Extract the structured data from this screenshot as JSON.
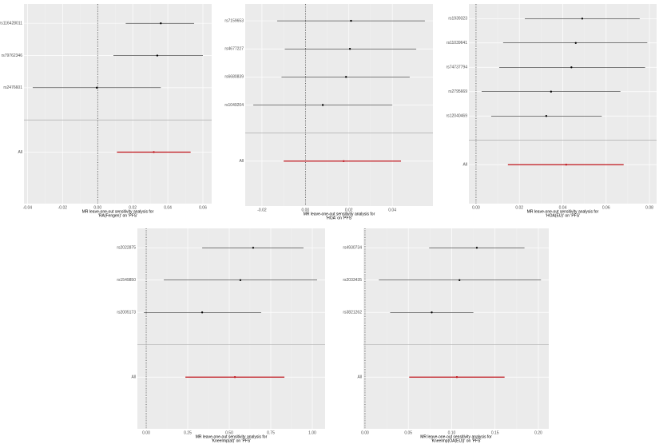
{
  "chart_data": [
    {
      "type": "forest",
      "color": "#000000",
      "summary_color": "#c0141b",
      "categories": [
        "rs116428011",
        "rs79762346",
        "rs2476601",
        "All"
      ],
      "values": [
        0.036,
        0.034,
        -0.0005,
        0.032
      ],
      "lower": [
        0.016,
        0.009,
        -0.037,
        0.011
      ],
      "upper": [
        0.055,
        0.06,
        0.036,
        0.053
      ],
      "xlim": [
        -0.042,
        0.065
      ],
      "xticks": [
        -0.04,
        -0.02,
        {
          "value": 0,
          "label": "0.00"
        },
        0.02,
        0.04,
        0.06
      ],
      "xlabel": [
        "MR leave-one-out sensitivity analysis for",
        "'RA(Fengen)' on 'PFS'"
      ]
    },
    {
      "type": "forest",
      "color": "#000000",
      "summary_color": "#c0141b",
      "categories": [
        "rs7159653",
        "rs4677227",
        "rs6680839",
        "rs1049204",
        "All"
      ],
      "values": [
        0.021,
        0.0205,
        0.0187,
        0.008,
        0.0176
      ],
      "lower": [
        -0.013,
        -0.0095,
        -0.011,
        -0.024,
        -0.01
      ],
      "upper": [
        0.055,
        0.051,
        0.048,
        0.04,
        0.044
      ],
      "xlim": [
        -0.0277,
        0.0587
      ],
      "xticks": [
        -0.02,
        {
          "value": 0,
          "label": "0.00"
        },
        0.02,
        0.04
      ],
      "xlabel": [
        "MR leave-one-out sensitivity analysis for",
        "'HOA' on 'PFS'"
      ]
    },
    {
      "type": "forest",
      "color": "#000000",
      "summary_color": "#c0141b",
      "categories": [
        "rs1939323",
        "rs11039641",
        "rs74737794",
        "rs2795669",
        "rs12040469",
        "All"
      ],
      "values": [
        0.049,
        0.046,
        0.044,
        0.0346,
        0.0324,
        0.0416
      ],
      "lower": [
        0.0225,
        0.0125,
        0.0107,
        0.0026,
        0.007,
        0.0147
      ],
      "upper": [
        0.0755,
        0.079,
        0.078,
        0.0666,
        0.058,
        0.0681
      ],
      "xlim": [
        -0.0033,
        0.0833
      ],
      "xticks": [
        {
          "value": 0,
          "label": "0.00"
        },
        0.02,
        0.04,
        0.06,
        0.08
      ],
      "xlabel": [
        "MR leave-one-out sensitivity analysis for",
        "'HOA(EU)' on 'PFS'"
      ]
    },
    {
      "type": "forest",
      "color": "#000000",
      "summary_color": "#c0141b",
      "categories": [
        "rs2022875",
        "rs1549850",
        "rs2005173",
        "All"
      ],
      "values": [
        0.644,
        0.567,
        0.337,
        0.534
      ],
      "lower": [
        0.337,
        0.106,
        -0.014,
        0.236
      ],
      "upper": [
        0.947,
        1.029,
        0.692,
        0.832
      ],
      "xlim": [
        -0.053,
        1.077
      ],
      "xticks": [
        {
          "value": 0,
          "label": "0.00"
        },
        0.25,
        {
          "value": 0.5,
          "label": "0.50"
        },
        0.75,
        {
          "value": 1,
          "label": "1.00"
        }
      ],
      "xlabel": [
        "MR leave-one-out sensitivity analysis for",
        "'KneeImp(at)' on 'PFS'"
      ]
    },
    {
      "type": "forest",
      "color": "#000000",
      "summary_color": "#c0141b",
      "categories": [
        "rs4930734",
        "rs2033435",
        "rs3821262",
        "All"
      ],
      "values": [
        0.129,
        0.109,
        0.077,
        0.106
      ],
      "lower": [
        0.074,
        0.016,
        0.029,
        0.051
      ],
      "upper": [
        0.184,
        0.203,
        0.125,
        0.161
      ],
      "xlim": [
        -0.0018,
        0.212
      ],
      "xticks": [
        {
          "value": 0,
          "label": "0.00"
        },
        0.05,
        {
          "value": 0.1,
          "label": "0.10"
        },
        0.15,
        {
          "value": 0.2,
          "label": "0.20"
        }
      ],
      "xlabel": [
        "MR leave-one-out sensitivity analysis for",
        "'KneeImp(OA(EU))' on 'PFS'"
      ]
    }
  ]
}
